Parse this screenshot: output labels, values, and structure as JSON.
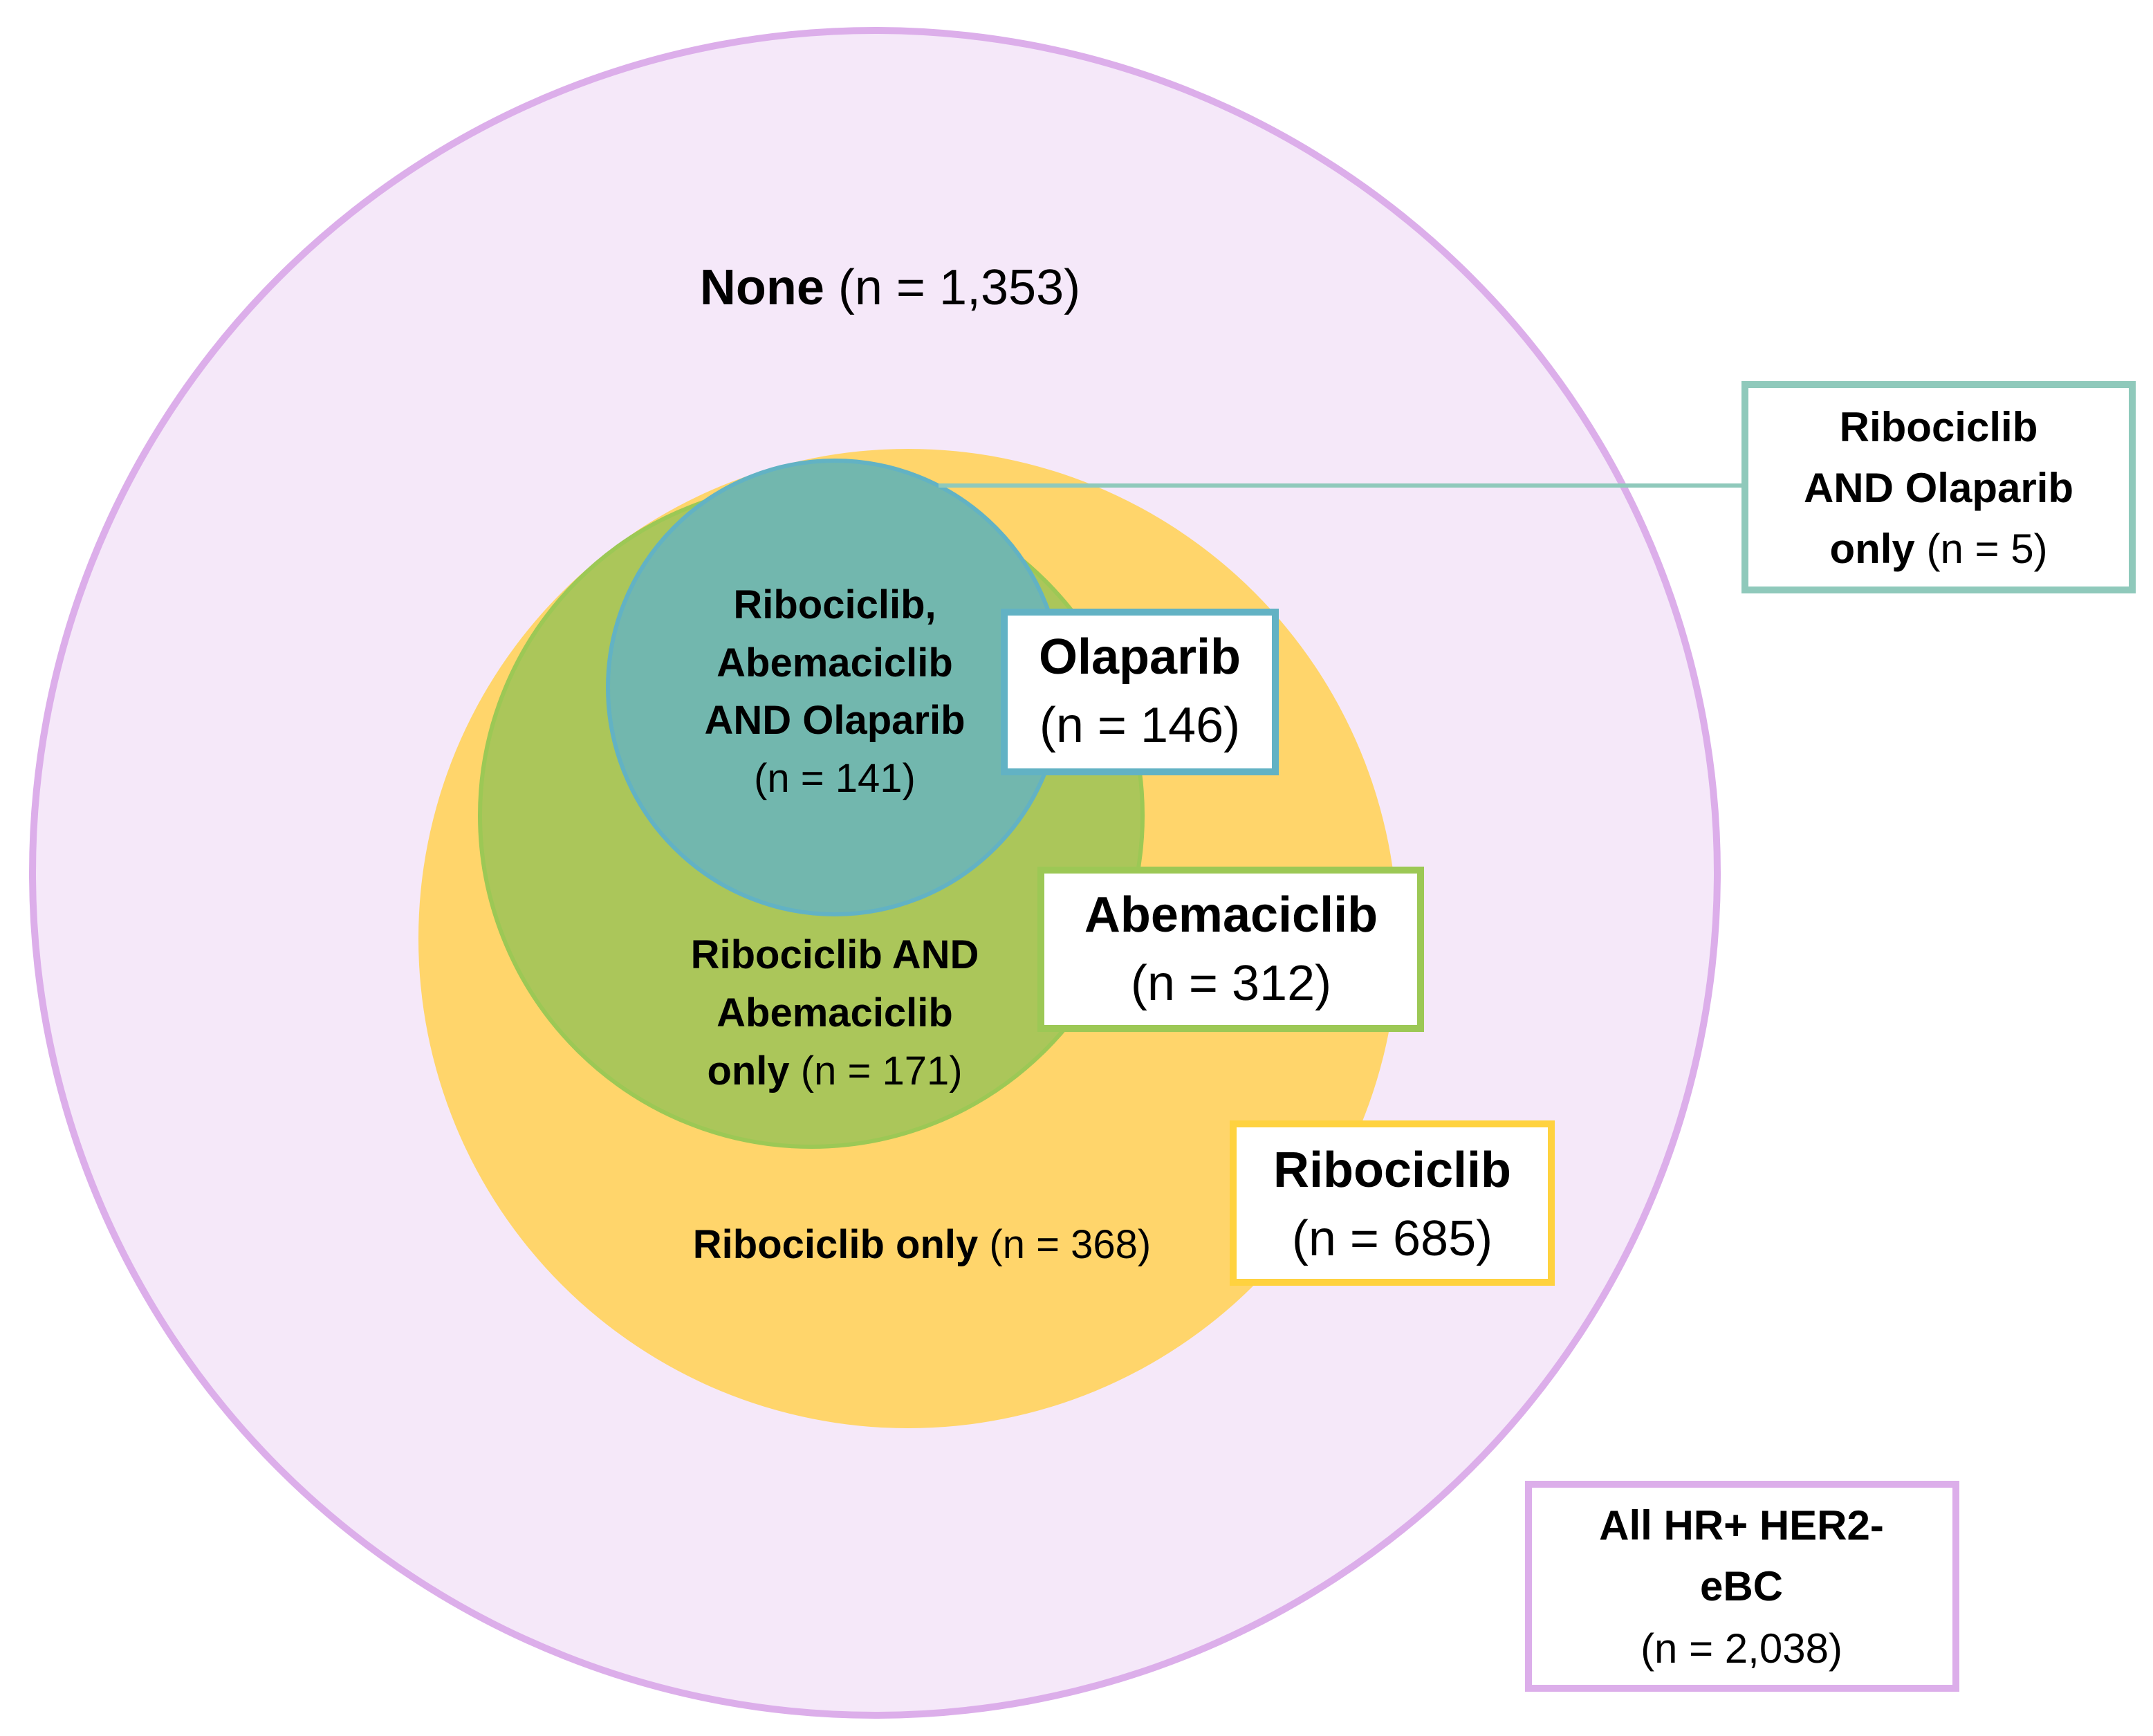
{
  "colors": {
    "all": "#f5e8f9",
    "all_stroke": "#dcaeea",
    "ribociclib": "#ffd56b",
    "ribociclib_stroke": "#ffd23f",
    "abemaciclib": "#abc65a",
    "abemaciclib_stroke": "#9cc855",
    "olaparib": "#72b7ae",
    "olaparib_stroke": "#62b2c4",
    "connector": "#8fc9bb"
  },
  "regions": {
    "none": {
      "bold": "None",
      "count": "(n = 1,353)"
    },
    "triple": {
      "line1": "Ribociclib,",
      "line2": "Abemaciclib",
      "line3": "AND Olaparib",
      "count": "(n = 141)"
    },
    "rib_abe": {
      "line1": "Ribociclib AND",
      "line2": "Abemaciclib",
      "line3": "only",
      "count": "(n = 171)"
    },
    "rib_only": {
      "bold": "Ribociclib only",
      "count": "(n = 368)"
    }
  },
  "labels": {
    "rib_ola": {
      "line1": "Ribociclib",
      "line2": "AND Olaparib",
      "line3": "only",
      "count": "(n = 5)"
    },
    "olaparib": {
      "title": "Olaparib",
      "count": "(n = 146)"
    },
    "abemaciclib": {
      "title": "Abemaciclib",
      "count": "(n = 312)"
    },
    "ribociclib": {
      "title": "Ribociclib",
      "count": "(n = 685)"
    },
    "all": {
      "line1": "All HR+ HER2-",
      "line2": "eBC",
      "count": "(n = 2,038)"
    }
  }
}
